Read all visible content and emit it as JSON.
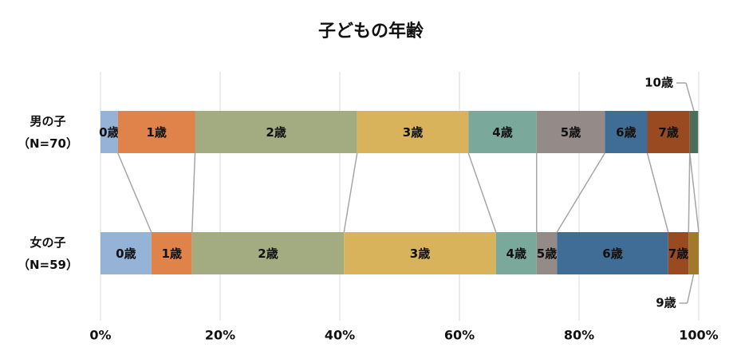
{
  "chart_data": {
    "type": "stacked-bar-100",
    "title": "子どもの年齢",
    "categories": [
      "男の子\n（N=70）",
      "女の子\n（N=59）"
    ],
    "series": [
      {
        "name": "0歳",
        "color": "#95b3d7",
        "values": [
          2.9,
          8.5
        ]
      },
      {
        "name": "1歳",
        "color": "#e0834a",
        "values": [
          12.9,
          6.8
        ]
      },
      {
        "name": "2歳",
        "color": "#a3ab80",
        "values": [
          27.1,
          25.4
        ]
      },
      {
        "name": "3歳",
        "color": "#d9b35c",
        "values": [
          18.6,
          25.4
        ]
      },
      {
        "name": "4歳",
        "color": "#7aa89a",
        "values": [
          11.4,
          6.8
        ]
      },
      {
        "name": "5歳",
        "color": "#948a87",
        "values": [
          11.4,
          3.4
        ]
      },
      {
        "name": "6歳",
        "color": "#3f6d96",
        "values": [
          7.1,
          18.6
        ]
      },
      {
        "name": "7歳",
        "color": "#9a4a20",
        "values": [
          7.1,
          3.4
        ]
      },
      {
        "name": "9歳",
        "color": "#a07a2a",
        "values": [
          0,
          1.7
        ]
      },
      {
        "name": "10歳",
        "color": "#4a6e5a",
        "values": [
          1.4,
          0
        ]
      }
    ],
    "xlim": [
      0,
      100
    ],
    "xticks": [
      {
        "value": 0,
        "label": "0%"
      },
      {
        "value": 20,
        "label": "20%"
      },
      {
        "value": 40,
        "label": "40%"
      },
      {
        "value": 60,
        "label": "60%"
      },
      {
        "value": 80,
        "label": "80%"
      },
      {
        "value": 100,
        "label": "100%"
      }
    ],
    "grid": true,
    "series_lines": true
  }
}
